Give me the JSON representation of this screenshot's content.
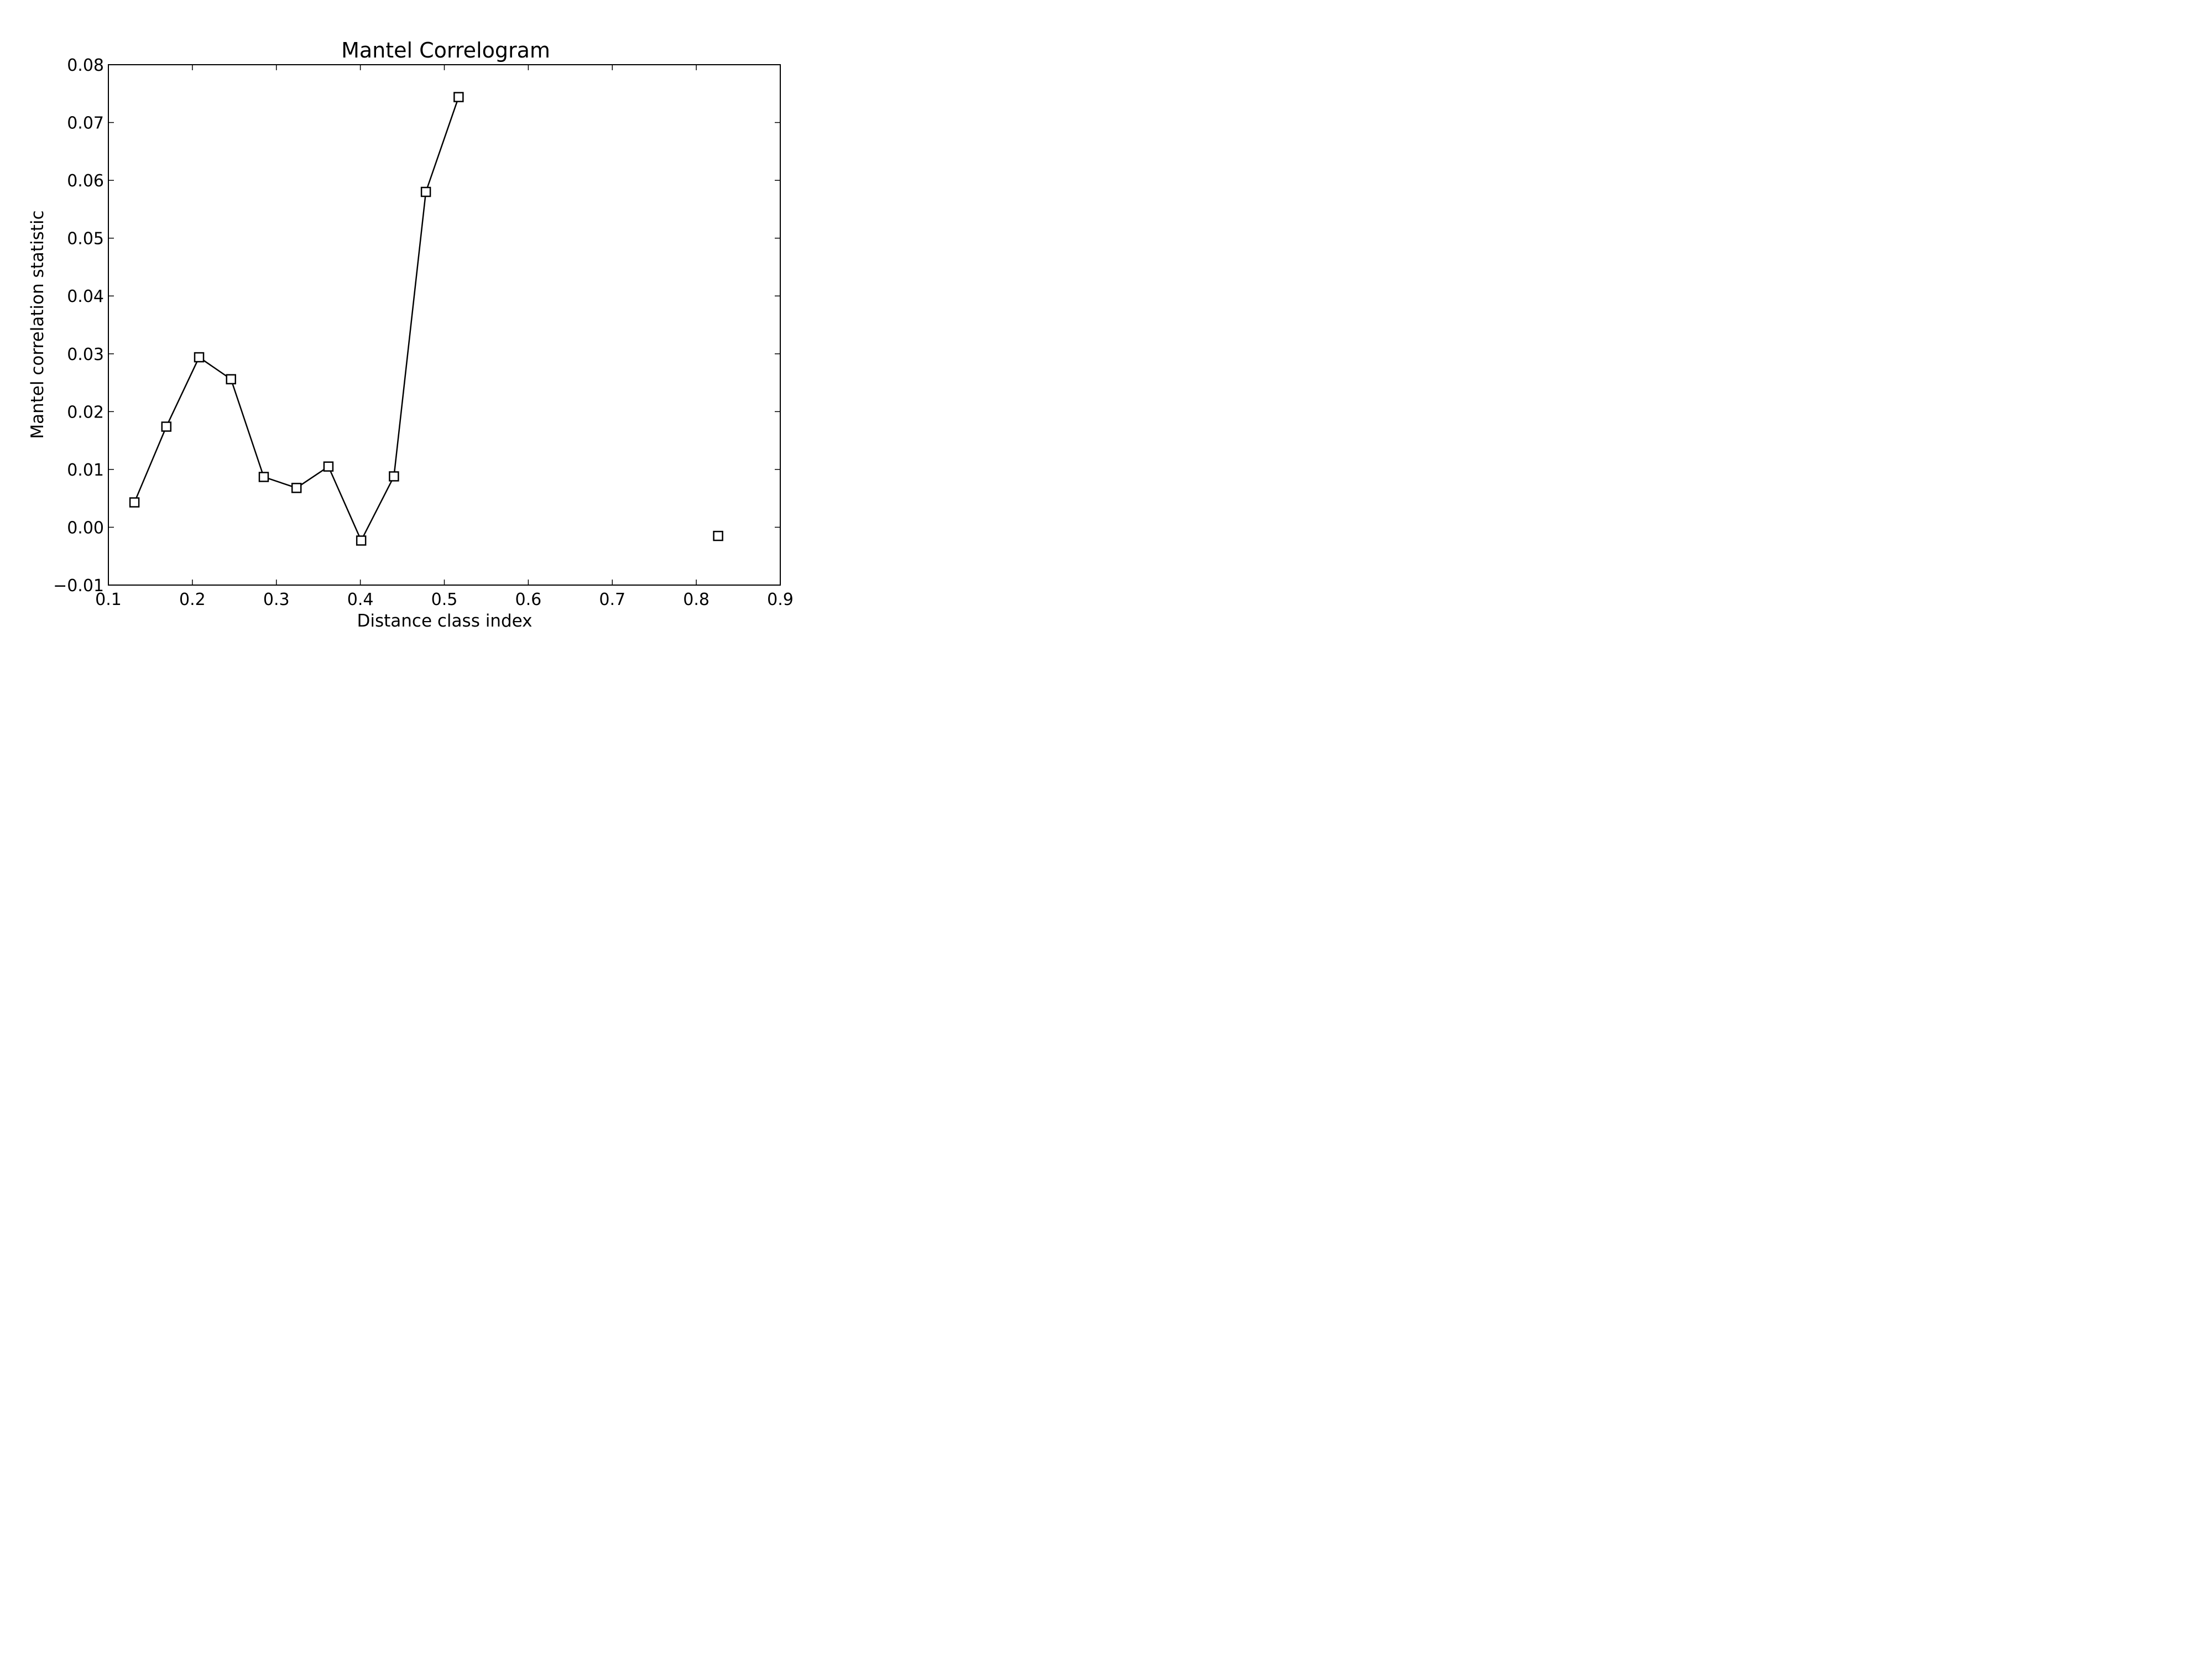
{
  "chart_data": {
    "type": "line",
    "title": "Mantel Correlogram",
    "xlabel": "Distance class index",
    "ylabel": "Mantel correlation statistic",
    "xlim": [
      0.1,
      0.9
    ],
    "ylim": [
      -0.01,
      0.08
    ],
    "x_ticks": [
      "0.1",
      "0.2",
      "0.3",
      "0.4",
      "0.5",
      "0.6",
      "0.7",
      "0.8",
      "0.9"
    ],
    "y_ticks": [
      "−0.01",
      "0.00",
      "0.01",
      "0.02",
      "0.03",
      "0.04",
      "0.05",
      "0.06",
      "0.07",
      "0.08"
    ],
    "grid": false,
    "marker": "square-open",
    "series": [
      {
        "color": "#000000",
        "x": [
          0.131,
          0.169,
          0.208,
          0.246,
          0.285,
          0.324,
          0.362,
          0.401,
          0.44,
          0.478,
          0.517,
          0.826
        ],
        "values": [
          0.0043,
          0.0174,
          0.0294,
          0.0256,
          0.0087,
          0.0068,
          0.0105,
          -0.0023,
          0.0088,
          0.058,
          0.0744,
          -0.0015
        ],
        "connected": [
          true,
          true,
          true,
          true,
          true,
          true,
          true,
          true,
          true,
          true,
          true,
          false
        ]
      }
    ]
  }
}
